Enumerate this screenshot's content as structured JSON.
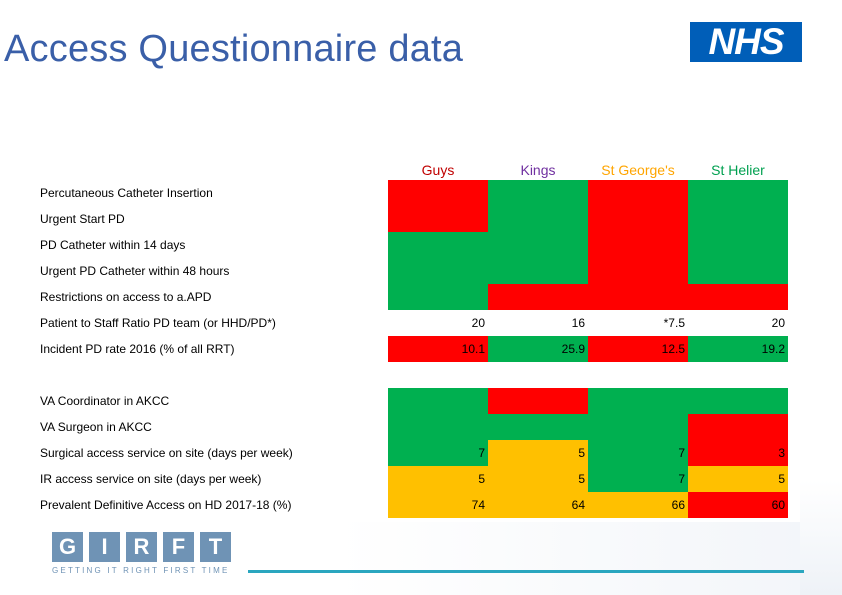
{
  "slide": {
    "title": "Access Questionnaire data",
    "nhs_logo": "NHS"
  },
  "columns": [
    {
      "label": "Guys",
      "color": "#c00000"
    },
    {
      "label": "Kings",
      "color": "#7030a0"
    },
    {
      "label": "St George's",
      "color": "#ffa500"
    },
    {
      "label": "St Helier",
      "color": "#00a050"
    }
  ],
  "colors": {
    "red": "#ff0000",
    "green": "#00b050",
    "amber": "#ffc000",
    "white": "#ffffff"
  },
  "rows": [
    {
      "label": "Percutaneous Catheter Insertion",
      "cells": [
        {
          "color": "red",
          "value": ""
        },
        {
          "color": "green",
          "value": ""
        },
        {
          "color": "red",
          "value": ""
        },
        {
          "color": "green",
          "value": ""
        }
      ]
    },
    {
      "label": "Urgent Start PD",
      "cells": [
        {
          "color": "red",
          "value": ""
        },
        {
          "color": "green",
          "value": ""
        },
        {
          "color": "red",
          "value": ""
        },
        {
          "color": "green",
          "value": ""
        }
      ]
    },
    {
      "label": "PD Catheter within 14 days",
      "cells": [
        {
          "color": "green",
          "value": ""
        },
        {
          "color": "green",
          "value": ""
        },
        {
          "color": "red",
          "value": ""
        },
        {
          "color": "green",
          "value": ""
        }
      ]
    },
    {
      "label": "Urgent PD Catheter within 48 hours",
      "cells": [
        {
          "color": "green",
          "value": ""
        },
        {
          "color": "green",
          "value": ""
        },
        {
          "color": "red",
          "value": ""
        },
        {
          "color": "green",
          "value": ""
        }
      ]
    },
    {
      "label": "Restrictions on access to a.APD",
      "cells": [
        {
          "color": "green",
          "value": ""
        },
        {
          "color": "red",
          "value": ""
        },
        {
          "color": "red",
          "value": ""
        },
        {
          "color": "red",
          "value": ""
        }
      ]
    },
    {
      "label": "Patient to Staff Ratio PD team (or HHD/PD*)",
      "cells": [
        {
          "color": "white",
          "value": "20"
        },
        {
          "color": "white",
          "value": "16"
        },
        {
          "color": "white",
          "value": "*7.5"
        },
        {
          "color": "white",
          "value": "20"
        }
      ]
    },
    {
      "label": "Incident PD rate 2016 (% of all RRT)",
      "cells": [
        {
          "color": "red",
          "value": "10.1"
        },
        {
          "color": "green",
          "value": "25.9"
        },
        {
          "color": "red",
          "value": "12.5"
        },
        {
          "color": "green",
          "value": "19.2"
        }
      ]
    },
    {
      "label": "",
      "cells": [
        {
          "color": "white",
          "value": ""
        },
        {
          "color": "white",
          "value": ""
        },
        {
          "color": "white",
          "value": ""
        },
        {
          "color": "white",
          "value": ""
        }
      ]
    },
    {
      "label": "VA Coordinator in AKCC",
      "cells": [
        {
          "color": "green",
          "value": ""
        },
        {
          "color": "red",
          "value": ""
        },
        {
          "color": "green",
          "value": ""
        },
        {
          "color": "green",
          "value": ""
        }
      ]
    },
    {
      "label": "VA Surgeon in AKCC",
      "cells": [
        {
          "color": "green",
          "value": ""
        },
        {
          "color": "green",
          "value": ""
        },
        {
          "color": "green",
          "value": ""
        },
        {
          "color": "red",
          "value": ""
        }
      ]
    },
    {
      "label": "Surgical access service on site (days per week)",
      "cells": [
        {
          "color": "green",
          "value": "7"
        },
        {
          "color": "amber",
          "value": "5"
        },
        {
          "color": "green",
          "value": "7"
        },
        {
          "color": "red",
          "value": "3"
        }
      ]
    },
    {
      "label": "IR access service on site (days per week)",
      "cells": [
        {
          "color": "amber",
          "value": "5"
        },
        {
          "color": "amber",
          "value": "5"
        },
        {
          "color": "green",
          "value": "7"
        },
        {
          "color": "amber",
          "value": "5"
        }
      ]
    },
    {
      "label": "Prevalent Definitive Access on HD 2017-18 (%)",
      "cells": [
        {
          "color": "amber",
          "value": "74"
        },
        {
          "color": "amber",
          "value": "64"
        },
        {
          "color": "amber",
          "value": "66"
        },
        {
          "color": "red",
          "value": "60"
        }
      ]
    }
  ],
  "footer": {
    "letters": [
      "G",
      "I",
      "R",
      "F",
      "T"
    ],
    "tagline": "GETTING IT RIGHT FIRST TIME",
    "accent": "#2aa6bf"
  }
}
